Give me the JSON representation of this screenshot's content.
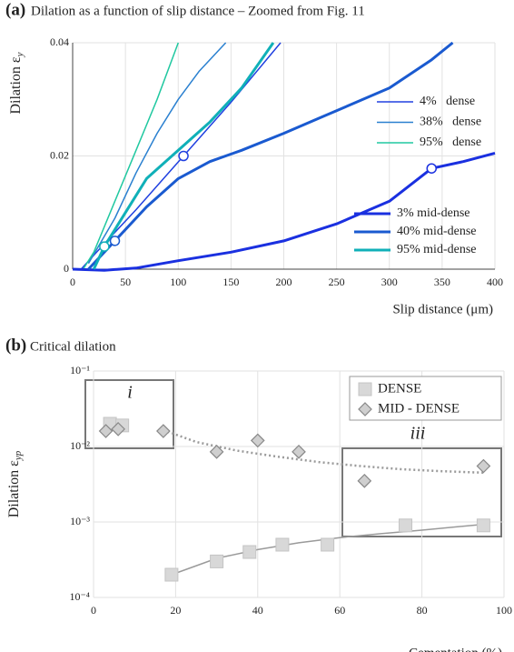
{
  "chart_data": [
    {
      "type": "line",
      "label": "(a)",
      "title": "Dilation as a function of slip distance – Zoomed from Fig. 11",
      "y_label": "Dilation ε",
      "y_label_sub": "y",
      "x_label": "Slip distance (μm)",
      "xlim": [
        0,
        400
      ],
      "xticks": [
        0,
        50,
        100,
        150,
        200,
        250,
        300,
        350,
        400
      ],
      "ylim": [
        0,
        0.04
      ],
      "yticks": [
        0,
        0.02,
        0.04
      ],
      "grid": true,
      "log_y": false,
      "series": [
        {
          "name": "4%   dense",
          "color": "#2040e0",
          "width": 1.5,
          "x": [
            8,
            30,
            60,
            105,
            150,
            197
          ],
          "values": [
            0,
            0.0045,
            0.0105,
            0.02,
            0.0295,
            0.04
          ],
          "marker": [
            105,
            0.02
          ]
        },
        {
          "name": "38%   dense",
          "color": "#2a80d0",
          "width": 1.5,
          "x": [
            15,
            40,
            60,
            80,
            100,
            120,
            145
          ],
          "values": [
            0.001,
            0.009,
            0.017,
            0.024,
            0.03,
            0.035,
            0.04
          ]
        },
        {
          "name": "95%   dense",
          "color": "#20c8a0",
          "width": 1.5,
          "x": [
            10,
            20,
            40,
            60,
            80,
            100
          ],
          "values": [
            0,
            0.003,
            0.012,
            0.021,
            0.03,
            0.04
          ]
        },
        {
          "name": "3% mid-dense",
          "color": "#1a30e0",
          "width": 3,
          "x": [
            0,
            30,
            60,
            100,
            150,
            200,
            250,
            300,
            340,
            370,
            400
          ],
          "values": [
            0,
            -0.0002,
            0.0002,
            0.0015,
            0.003,
            0.005,
            0.008,
            0.012,
            0.0178,
            0.019,
            0.0205
          ],
          "marker": [
            340,
            0.0178
          ]
        },
        {
          "name": "40% mid-dense",
          "color": "#1a5ad0",
          "width": 3,
          "x": [
            15,
            40,
            70,
            100,
            130,
            160,
            200,
            250,
            300,
            340,
            360
          ],
          "values": [
            0,
            0.005,
            0.011,
            0.016,
            0.019,
            0.021,
            0.024,
            0.028,
            0.032,
            0.037,
            0.04
          ],
          "marker": [
            40,
            0.005
          ]
        },
        {
          "name": "95% mid-dense",
          "color": "#10b0b8",
          "width": 3,
          "x": [
            20,
            30,
            50,
            70,
            100,
            130,
            160,
            190
          ],
          "values": [
            0,
            0.004,
            0.01,
            0.016,
            0.021,
            0.026,
            0.032,
            0.04
          ],
          "marker": [
            30,
            0.004
          ]
        }
      ]
    },
    {
      "type": "scatter",
      "label": "(b)",
      "title": "Critical dilation",
      "y_label": "Dilation ε",
      "y_label_sub": "yp",
      "x_label": "Cementation (%)",
      "xlim": [
        0,
        100
      ],
      "xticks": [
        0,
        20,
        40,
        60,
        80,
        100
      ],
      "ylim": [
        0.0001,
        0.1
      ],
      "log_y": true,
      "grid": true,
      "yticks": [
        {
          "value": 0.0001,
          "label": "10⁻⁴"
        },
        {
          "value": 0.001,
          "label": "10⁻³"
        },
        {
          "value": 0.01,
          "label": "10⁻²"
        },
        {
          "value": 0.1,
          "label": "10⁻¹"
        }
      ],
      "annotations": [
        "i",
        "iii"
      ],
      "series": [
        {
          "name": "DENSE",
          "color": "#d8d8d8",
          "shape": "square",
          "x": [
            4,
            7,
            19,
            30,
            38,
            46,
            57,
            76,
            95
          ],
          "values": [
            0.02,
            0.019,
            0.0002,
            0.0003,
            0.0004,
            0.0005,
            0.0005,
            0.0009,
            0.0009
          ]
        },
        {
          "name": "MID - DENSE",
          "color": "#cfcfcf",
          "shape": "diamond",
          "x": [
            3,
            6,
            17,
            30,
            40,
            50,
            66,
            95
          ],
          "values": [
            0.016,
            0.017,
            0.016,
            0.0085,
            0.012,
            0.0085,
            0.0035,
            0.0055
          ]
        }
      ],
      "fits": [
        {
          "color": "#9a9a9a",
          "dash": false,
          "x": [
            19,
            30,
            40,
            50,
            60,
            70,
            80,
            95
          ],
          "values": [
            0.0002,
            0.00033,
            0.00043,
            0.00053,
            0.00062,
            0.0007,
            0.00078,
            0.00093
          ]
        },
        {
          "color": "#9a9a9a",
          "dash": true,
          "x": [
            17,
            25,
            35,
            45,
            55,
            65,
            75,
            85,
            95
          ],
          "values": [
            0.0165,
            0.0115,
            0.0088,
            0.0073,
            0.0062,
            0.0055,
            0.005,
            0.0047,
            0.0045
          ]
        }
      ]
    }
  ]
}
